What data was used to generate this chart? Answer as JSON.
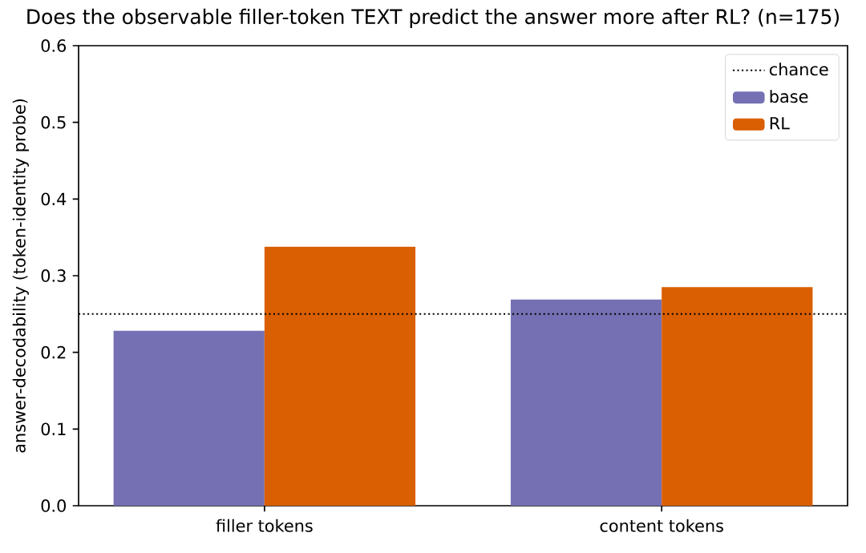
{
  "chart_data": {
    "type": "bar",
    "title": "Does the observable filler-token TEXT predict the answer more after RL? (n=175)",
    "ylabel": "answer-decodability (token-identity probe)",
    "categories": [
      "filler tokens",
      "content tokens"
    ],
    "series": [
      {
        "name": "base",
        "color": "#7570b3",
        "values": [
          0.228,
          0.269
        ]
      },
      {
        "name": "RL",
        "color": "#d95f02",
        "values": [
          0.338,
          0.285
        ]
      }
    ],
    "ylim": [
      0,
      0.6
    ],
    "yticks": [
      {
        "value": 0,
        "label": "0.0"
      },
      0.1,
      0.2,
      0.3,
      0.4,
      0.5,
      0.6
    ],
    "ref_lines": [
      {
        "axis": "y",
        "value": 0.25,
        "label": "chance",
        "color": "#000000",
        "line_style": "dotted"
      }
    ],
    "legend": "top right"
  }
}
